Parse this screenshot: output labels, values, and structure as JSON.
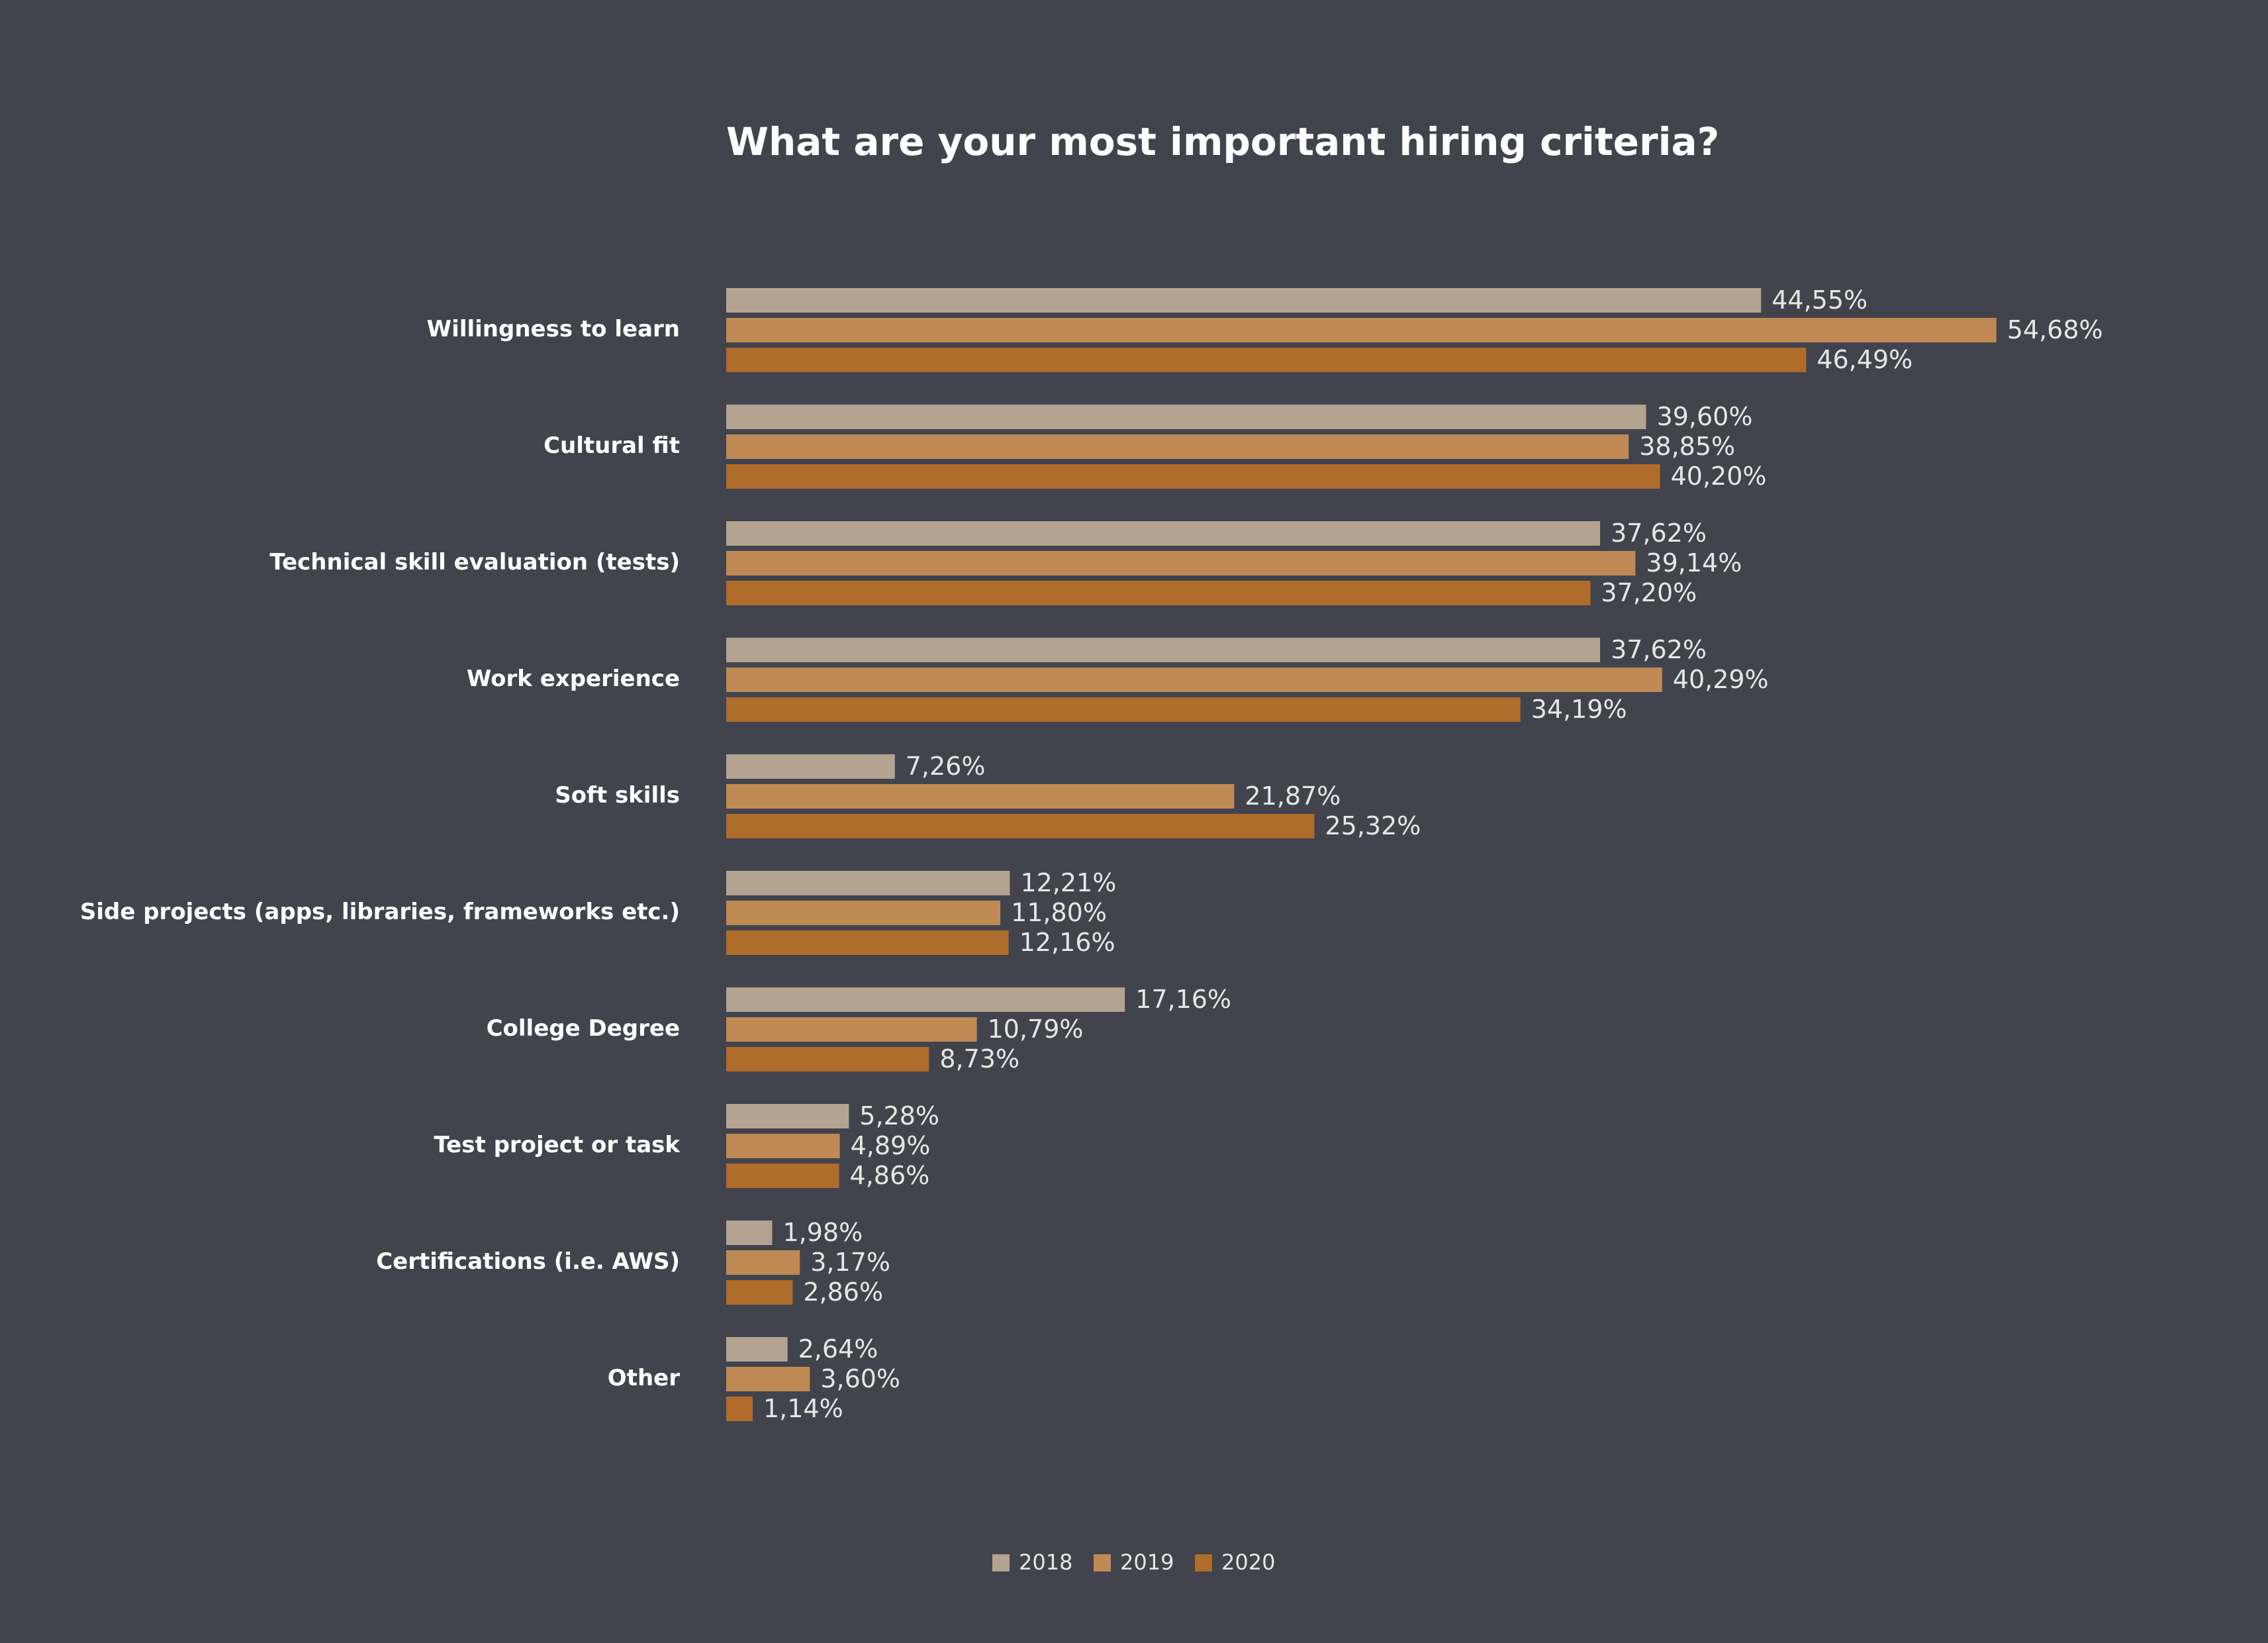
{
  "chart_data": {
    "type": "barh",
    "title": "What are your most important hiring criteria?",
    "categories": [
      "Willingness to learn",
      "Cultural fit",
      "Technical skill evaluation (tests)",
      "Work experience",
      "Soft skills",
      "Side projects (apps, libraries, frameworks etc.)",
      "College Degree",
      "Test project or task",
      "Certifications (i.e. AWS)",
      "Other"
    ],
    "series": [
      {
        "name": "2018",
        "color": "#b3a390",
        "values": [
          44.55,
          39.6,
          37.62,
          37.62,
          7.26,
          12.21,
          17.16,
          5.28,
          1.98,
          2.64
        ],
        "value_labels": [
          "44,55%",
          "39,60%",
          "37,62%",
          "37,62%",
          "7,26%",
          "12,21%",
          "17,16%",
          "5,28%",
          "1,98%",
          "2,64%"
        ]
      },
      {
        "name": "2019",
        "color": "#c08a55",
        "values": [
          54.68,
          38.85,
          39.14,
          40.29,
          21.87,
          11.8,
          10.79,
          4.89,
          3.17,
          3.6
        ],
        "value_labels": [
          "54,68%",
          "38,85%",
          "39,14%",
          "40,29%",
          "21,87%",
          "11,80%",
          "10,79%",
          "4,89%",
          "3,17%",
          "3,60%"
        ]
      },
      {
        "name": "2020",
        "color": "#b06c2b",
        "values": [
          46.49,
          40.2,
          37.2,
          34.19,
          25.32,
          12.16,
          8.73,
          4.86,
          2.86,
          1.14
        ],
        "value_labels": [
          "46,49%",
          "40,20%",
          "37,20%",
          "34,19%",
          "25,32%",
          "12,16%",
          "8,73%",
          "4,86%",
          "2,86%",
          "1,14%"
        ]
      }
    ],
    "legend": "bottom"
  }
}
